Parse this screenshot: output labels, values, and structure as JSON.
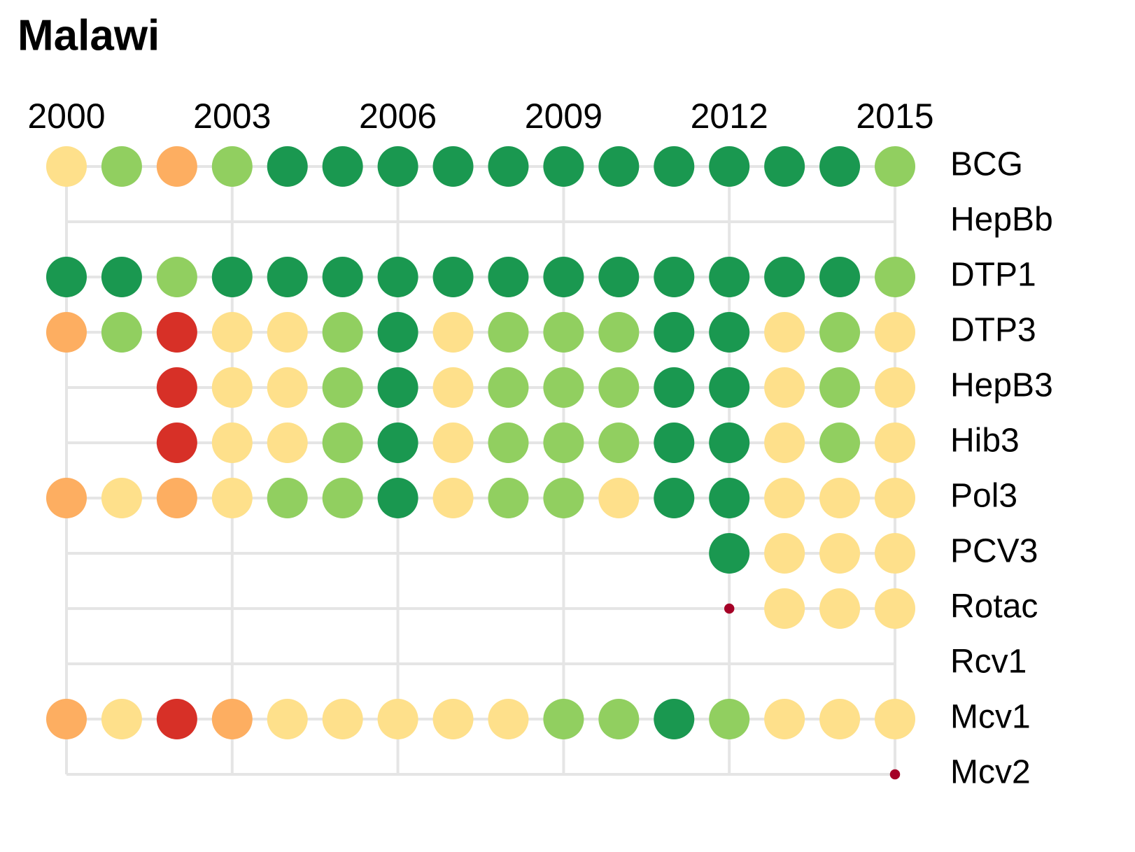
{
  "chart_data": {
    "type": "dot-matrix",
    "title": "Malawi",
    "x": [
      2000,
      2001,
      2002,
      2003,
      2004,
      2005,
      2006,
      2007,
      2008,
      2009,
      2010,
      2011,
      2012,
      2013,
      2014,
      2015
    ],
    "xlim": [
      2000,
      2015
    ],
    "xticks": [
      2000,
      2003,
      2006,
      2009,
      2012,
      2015
    ],
    "grid": true,
    "series": [
      {
        "name": "BCG",
        "colors": [
          "#fee08b",
          "#91cf60",
          "#fdae61",
          "#91cf60",
          "#1a9850",
          "#1a9850",
          "#1a9850",
          "#1a9850",
          "#1a9850",
          "#1a9850",
          "#1a9850",
          "#1a9850",
          "#1a9850",
          "#1a9850",
          "#1a9850",
          "#91cf60"
        ],
        "sizes": [
          1,
          1,
          1,
          1,
          1,
          1,
          1,
          1,
          1,
          1,
          1,
          1,
          1,
          1,
          1,
          1
        ]
      },
      {
        "name": "HepBb",
        "colors": [
          null,
          null,
          null,
          null,
          null,
          null,
          null,
          null,
          null,
          null,
          null,
          null,
          null,
          null,
          null,
          null
        ],
        "sizes": [
          null,
          null,
          null,
          null,
          null,
          null,
          null,
          null,
          null,
          null,
          null,
          null,
          null,
          null,
          null,
          null
        ]
      },
      {
        "name": "DTP1",
        "colors": [
          "#1a9850",
          "#1a9850",
          "#91cf60",
          "#1a9850",
          "#1a9850",
          "#1a9850",
          "#1a9850",
          "#1a9850",
          "#1a9850",
          "#1a9850",
          "#1a9850",
          "#1a9850",
          "#1a9850",
          "#1a9850",
          "#1a9850",
          "#91cf60"
        ],
        "sizes": [
          1,
          1,
          1,
          1,
          1,
          1,
          1,
          1,
          1,
          1,
          1,
          1,
          1,
          1,
          1,
          1
        ]
      },
      {
        "name": "DTP3",
        "colors": [
          "#fdae61",
          "#91cf60",
          "#d73027",
          "#fee08b",
          "#fee08b",
          "#91cf60",
          "#1a9850",
          "#fee08b",
          "#91cf60",
          "#91cf60",
          "#91cf60",
          "#1a9850",
          "#1a9850",
          "#fee08b",
          "#91cf60",
          "#fee08b"
        ],
        "sizes": [
          1,
          1,
          1,
          1,
          1,
          1,
          1,
          1,
          1,
          1,
          1,
          1,
          1,
          1,
          1,
          1
        ]
      },
      {
        "name": "HepB3",
        "colors": [
          null,
          null,
          "#d73027",
          "#fee08b",
          "#fee08b",
          "#91cf60",
          "#1a9850",
          "#fee08b",
          "#91cf60",
          "#91cf60",
          "#91cf60",
          "#1a9850",
          "#1a9850",
          "#fee08b",
          "#91cf60",
          "#fee08b"
        ],
        "sizes": [
          null,
          null,
          1,
          1,
          1,
          1,
          1,
          1,
          1,
          1,
          1,
          1,
          1,
          1,
          1,
          1
        ]
      },
      {
        "name": "Hib3",
        "colors": [
          null,
          null,
          "#d73027",
          "#fee08b",
          "#fee08b",
          "#91cf60",
          "#1a9850",
          "#fee08b",
          "#91cf60",
          "#91cf60",
          "#91cf60",
          "#1a9850",
          "#1a9850",
          "#fee08b",
          "#91cf60",
          "#fee08b"
        ],
        "sizes": [
          null,
          null,
          1,
          1,
          1,
          1,
          1,
          1,
          1,
          1,
          1,
          1,
          1,
          1,
          1,
          1
        ]
      },
      {
        "name": "Pol3",
        "colors": [
          "#fdae61",
          "#fee08b",
          "#fdae61",
          "#fee08b",
          "#91cf60",
          "#91cf60",
          "#1a9850",
          "#fee08b",
          "#91cf60",
          "#91cf60",
          "#fee08b",
          "#1a9850",
          "#1a9850",
          "#fee08b",
          "#fee08b",
          "#fee08b"
        ],
        "sizes": [
          1,
          1,
          1,
          1,
          1,
          1,
          1,
          1,
          1,
          1,
          1,
          1,
          1,
          1,
          1,
          1
        ]
      },
      {
        "name": "PCV3",
        "colors": [
          null,
          null,
          null,
          null,
          null,
          null,
          null,
          null,
          null,
          null,
          null,
          null,
          "#1a9850",
          "#fee08b",
          "#fee08b",
          "#fee08b"
        ],
        "sizes": [
          null,
          null,
          null,
          null,
          null,
          null,
          null,
          null,
          null,
          null,
          null,
          null,
          1,
          1,
          1,
          1
        ]
      },
      {
        "name": "Rotac",
        "colors": [
          null,
          null,
          null,
          null,
          null,
          null,
          null,
          null,
          null,
          null,
          null,
          null,
          "#a50026",
          "#fee08b",
          "#fee08b",
          "#fee08b"
        ],
        "sizes": [
          null,
          null,
          null,
          null,
          null,
          null,
          null,
          null,
          null,
          null,
          null,
          null,
          0.25,
          1,
          1,
          1
        ]
      },
      {
        "name": "Rcv1",
        "colors": [
          null,
          null,
          null,
          null,
          null,
          null,
          null,
          null,
          null,
          null,
          null,
          null,
          null,
          null,
          null,
          null
        ],
        "sizes": [
          null,
          null,
          null,
          null,
          null,
          null,
          null,
          null,
          null,
          null,
          null,
          null,
          null,
          null,
          null,
          null
        ]
      },
      {
        "name": "Mcv1",
        "colors": [
          "#fdae61",
          "#fee08b",
          "#d73027",
          "#fdae61",
          "#fee08b",
          "#fee08b",
          "#fee08b",
          "#fee08b",
          "#fee08b",
          "#91cf60",
          "#91cf60",
          "#1a9850",
          "#91cf60",
          "#fee08b",
          "#fee08b",
          "#fee08b"
        ],
        "sizes": [
          1,
          1,
          1,
          1,
          1,
          1,
          1,
          1,
          1,
          1,
          1,
          1,
          1,
          1,
          1,
          1
        ]
      },
      {
        "name": "Mcv2",
        "colors": [
          null,
          null,
          null,
          null,
          null,
          null,
          null,
          null,
          null,
          null,
          null,
          null,
          null,
          null,
          null,
          "#a50026"
        ],
        "sizes": [
          null,
          null,
          null,
          null,
          null,
          null,
          null,
          null,
          null,
          null,
          null,
          null,
          null,
          null,
          null,
          0.25
        ]
      }
    ]
  }
}
